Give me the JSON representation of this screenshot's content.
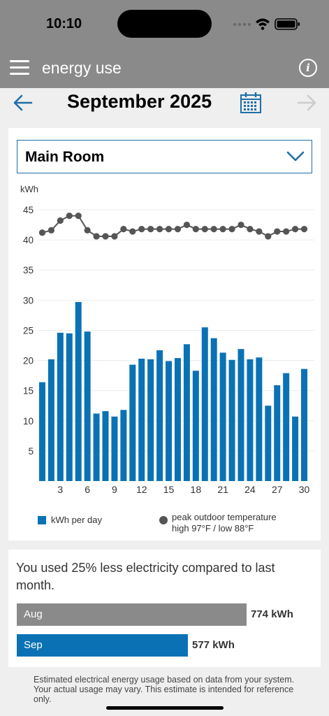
{
  "status_bar": {
    "time": "10:10"
  },
  "app_bar": {
    "title": "energy use"
  },
  "nav": {
    "month": "September 2025"
  },
  "room_selector": {
    "selected": "Main Room"
  },
  "chart_data": {
    "type": "bar",
    "ylabel": "kWh",
    "ylim": [
      0,
      45
    ],
    "yticks": [
      5,
      10,
      15,
      20,
      25,
      30,
      35,
      40,
      45
    ],
    "categories": [
      1,
      2,
      3,
      4,
      5,
      6,
      7,
      8,
      9,
      10,
      11,
      12,
      13,
      14,
      15,
      16,
      17,
      18,
      19,
      20,
      21,
      22,
      23,
      24,
      25,
      26,
      27,
      28,
      29,
      30
    ],
    "xtick_labels": [
      "3",
      "6",
      "9",
      "12",
      "15",
      "18",
      "21",
      "24",
      "27",
      "30"
    ],
    "series": [
      {
        "name": "kWh per day",
        "type": "bar",
        "color": "#0a72b4",
        "values": [
          16.4,
          20.2,
          24.6,
          24.5,
          29.7,
          24.8,
          11.2,
          11.6,
          10.7,
          11.8,
          19.3,
          20.3,
          20.2,
          21.7,
          19.9,
          20.4,
          22.7,
          18.3,
          25.5,
          23.7,
          21.3,
          20.1,
          21.9,
          20.2,
          20.5,
          12.5,
          15.9,
          17.9,
          10.7,
          18.6
        ]
      },
      {
        "name": "peak outdoor temperature",
        "type": "line",
        "color": "#555555",
        "values": [
          41.2,
          41.6,
          43.2,
          44.0,
          44.0,
          41.6,
          40.6,
          40.6,
          40.6,
          41.8,
          41.4,
          41.8,
          41.8,
          41.8,
          41.8,
          41.8,
          42.5,
          41.8,
          41.8,
          41.8,
          41.8,
          41.8,
          42.5,
          41.8,
          41.4,
          40.6,
          41.4,
          41.4,
          41.8,
          41.8
        ]
      }
    ]
  },
  "legend": {
    "bar_label": "kWh per day",
    "temp_label": "peak outdoor temperature",
    "temp_range": "high 97°F / low 88°F"
  },
  "comparison": {
    "text": "You used 25% less electricity compared to last month.",
    "rows": [
      {
        "month": "Aug",
        "value": "774 kWh",
        "kwh": 774,
        "color": "#8a8a8a"
      },
      {
        "month": "Sep",
        "value": "577 kWh",
        "kwh": 577,
        "color": "#0a72b4"
      }
    ]
  },
  "footnote": "Estimated electrical energy usage based on data from your system. Your actual usage may vary. This estimate is intended for reference only."
}
